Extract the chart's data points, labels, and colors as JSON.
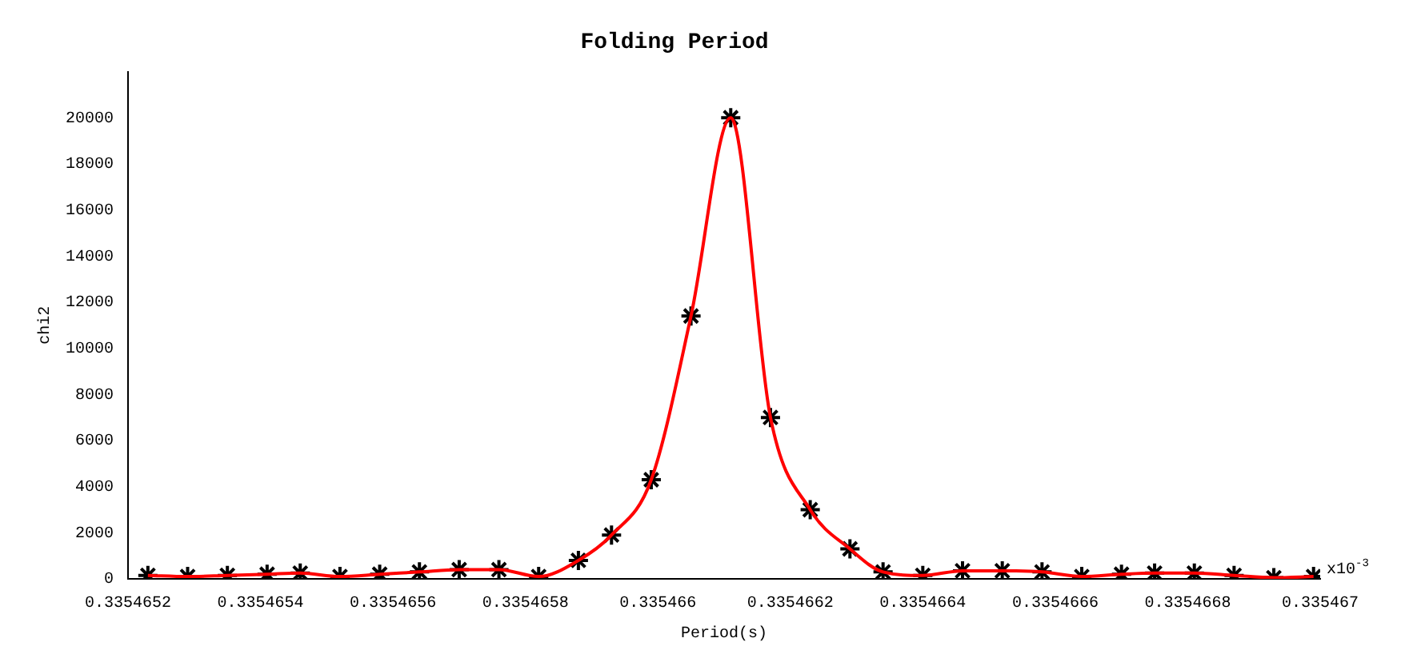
{
  "chart_data": {
    "type": "scatter",
    "title": "Folding Period",
    "xlabel": "Period(s)",
    "ylabel": "chi2",
    "annotations": [
      "x10$^{-3}$"
    ],
    "x": [
      0.33546523,
      0.33546529,
      0.33546535,
      0.33546541,
      0.33546546,
      0.33546552,
      0.33546558,
      0.33546564,
      0.3354657,
      0.33546576,
      0.33546582,
      0.33546588,
      0.33546593,
      0.33546599,
      0.33546605,
      0.33546611,
      0.33546617,
      0.33546623,
      0.33546629,
      0.33546634,
      0.3354664,
      0.33546646,
      0.33546652,
      0.33546658,
      0.33546664,
      0.3354667,
      0.33546675,
      0.33546681,
      0.33546687,
      0.33546693,
      0.33546699
    ],
    "series": [
      {
        "type": "line",
        "color": "#ff0000",
        "marker": "none",
        "values": [
          150,
          100,
          150,
          200,
          250,
          100,
          200,
          300,
          400,
          400,
          100,
          800,
          1900,
          4300,
          11400,
          20000,
          7000,
          3000,
          1300,
          300,
          150,
          350,
          350,
          300,
          100,
          200,
          250,
          250,
          150,
          50,
          100
        ]
      },
      {
        "type": "scatter",
        "color": "#000000",
        "marker": "cross",
        "values": [
          150,
          100,
          150,
          200,
          250,
          100,
          200,
          300,
          400,
          400,
          100,
          800,
          1900,
          4300,
          11400,
          20000,
          7000,
          3000,
          1300,
          300,
          150,
          350,
          350,
          300,
          100,
          200,
          250,
          250,
          150,
          50,
          100
        ]
      }
    ],
    "xlim": [
      0.3354652,
      0.335467
    ],
    "xticks": [
      0.3354652,
      0.3354654,
      0.3354656,
      0.3354658,
      0.335466,
      0.3354662,
      0.3354664,
      0.3354666,
      0.3354668,
      0.335467
    ],
    "ylim": [
      0,
      22000
    ],
    "yticks": [
      0,
      2000,
      4000,
      6000,
      8000,
      10000,
      12000,
      14000,
      16000,
      18000,
      20000
    ],
    "grid": false,
    "legend": false
  }
}
